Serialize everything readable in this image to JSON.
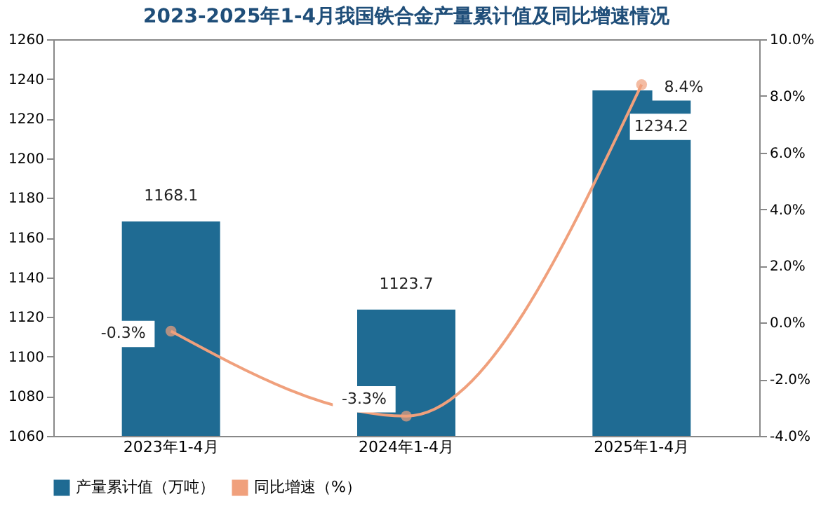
{
  "chart_data": {
    "type": "bar",
    "title": "2023-2025年1-4月我国铁合金产量累计值及同比增速情况",
    "categories": [
      "2023年1-4月",
      "2024年1-4月",
      "2025年1-4月"
    ],
    "series": [
      {
        "name": "产量累计值（万吨）",
        "color": "#1f6b93",
        "values": [
          1168.1,
          1123.7,
          1234.2
        ],
        "value_labels": [
          "1168.1",
          "1123.7",
          "1234.2"
        ]
      },
      {
        "name": "同比增速（%）",
        "type": "line",
        "axis": "y2",
        "color": "#f0a07c",
        "values": [
          -0.3,
          -3.3,
          8.4
        ],
        "value_labels": [
          "-0.3%",
          "-3.3%",
          "8.4%"
        ]
      }
    ],
    "ylim": [
      1060,
      1260
    ],
    "yticks": [
      1060,
      1080,
      1100,
      1120,
      1140,
      1160,
      1180,
      1200,
      1220,
      1240,
      1260
    ],
    "y2lim": [
      -4,
      10
    ],
    "y2ticks": [
      {
        "value": -4,
        "label": "-4.0%"
      },
      {
        "value": -2,
        "label": "-2.0%"
      },
      {
        "value": 0,
        "label": "0.0%"
      },
      {
        "value": 2,
        "label": "2.0%"
      },
      {
        "value": 4,
        "label": "4.0%"
      },
      {
        "value": 6,
        "label": "6.0%"
      },
      {
        "value": 8,
        "label": "8.0%"
      },
      {
        "value": 10,
        "label": "10.0%"
      }
    ],
    "marker": "circle",
    "grid": false,
    "legend": "bottom"
  }
}
